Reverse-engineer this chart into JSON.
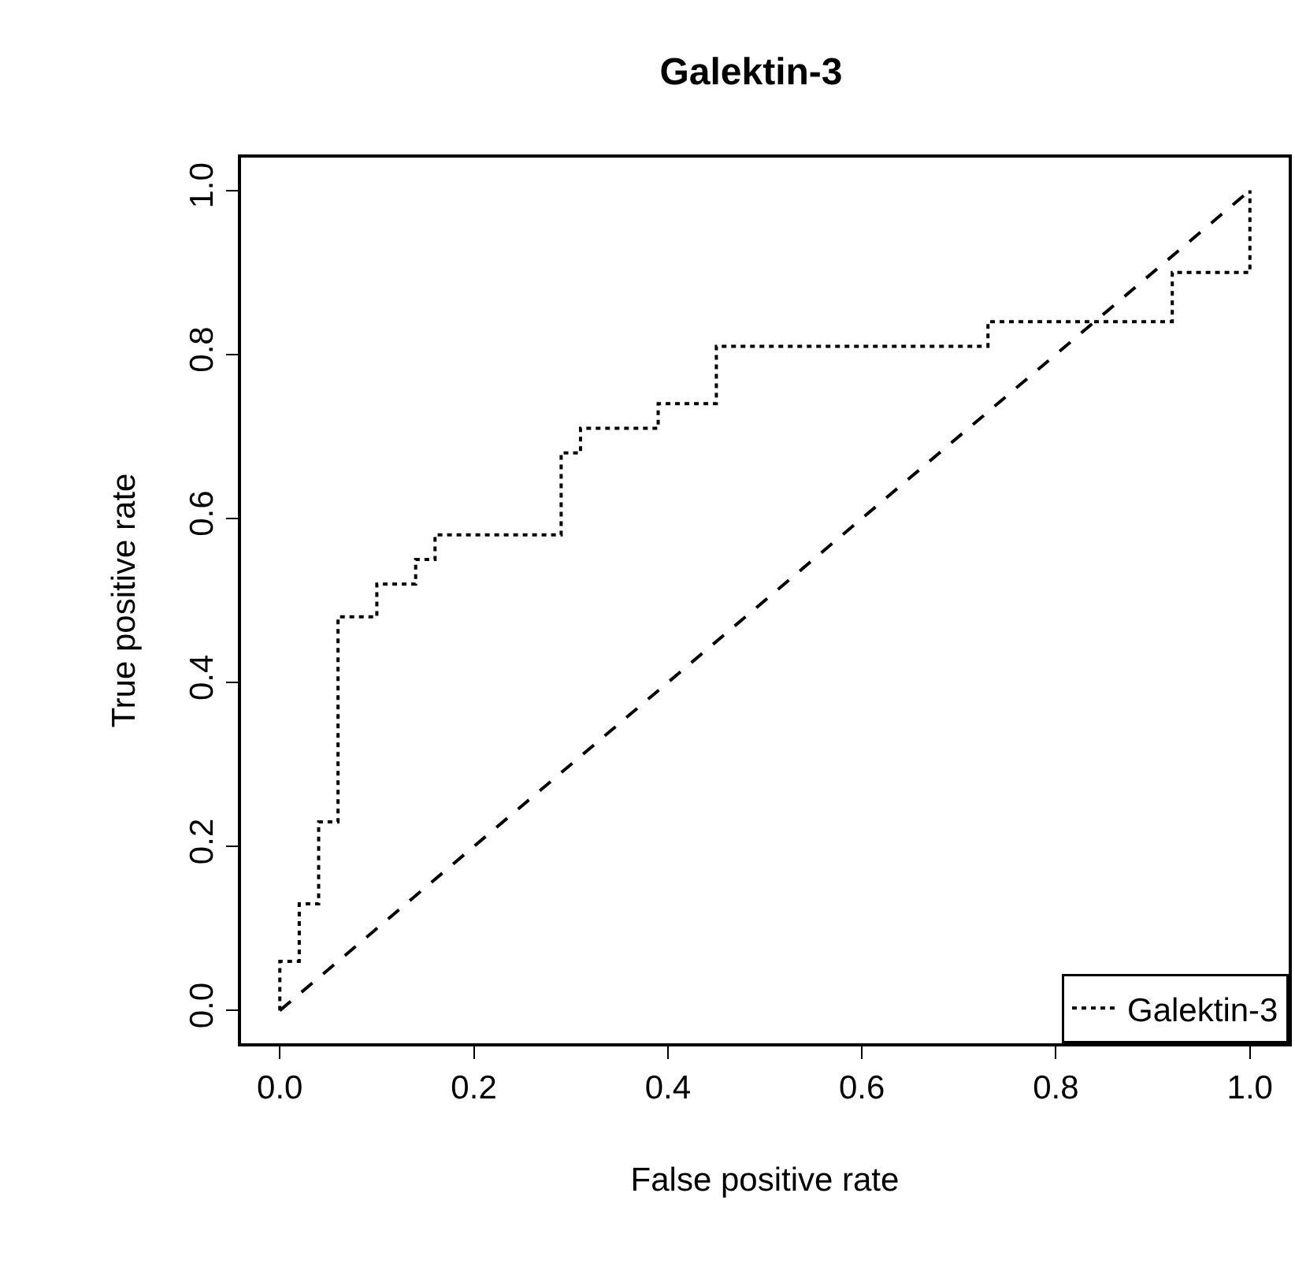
{
  "chart_data": {
    "type": "step",
    "title": "Galektin-3",
    "xlabel": "False positive rate",
    "ylabel": "True positive rate",
    "series": [
      {
        "name": "Galektin-3",
        "color": "#000000",
        "line_style": "dotted",
        "x": [
          0,
          0.02,
          0.04,
          0.06,
          0.1,
          0.14,
          0.16,
          0.29,
          0.31,
          0.39,
          0.45,
          0.73,
          0.92,
          1.0,
          1.0
        ],
        "values": [
          0,
          0.06,
          0.13,
          0.23,
          0.48,
          0.52,
          0.55,
          0.58,
          0.68,
          0.71,
          0.74,
          0.81,
          0.84,
          0.9,
          1.0
        ]
      },
      {
        "type": "line",
        "color": "#000000",
        "line_style": "dashed",
        "x": [
          0,
          1
        ],
        "values": [
          0,
          1
        ]
      }
    ],
    "xlim": [
      -0.04,
      1.04
    ],
    "ylim": [
      -0.04,
      1.04
    ],
    "xticks": [
      {
        "value": 0,
        "label": "0.0"
      },
      0.2,
      0.4,
      0.6,
      0.8,
      {
        "value": 1,
        "label": "1.0"
      }
    ],
    "yticks": [
      {
        "value": 0,
        "label": "0.0"
      },
      0.2,
      0.4,
      0.6,
      0.8,
      {
        "value": 1,
        "label": "1.0"
      }
    ],
    "legend": "bottom right",
    "marker": "none"
  }
}
